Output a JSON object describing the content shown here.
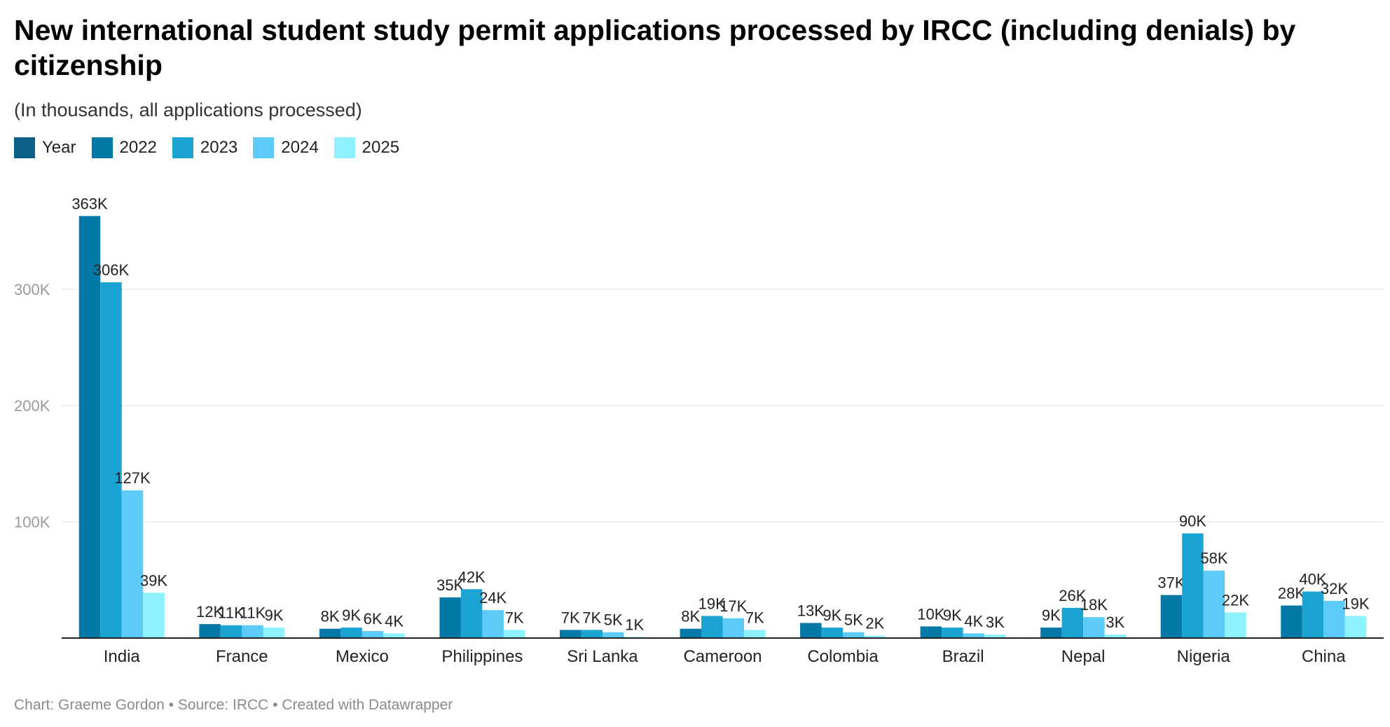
{
  "title": "New international student study permit applications processed by IRCC (including denials) by citizenship",
  "subtitle": "(In thousands, all applications processed)",
  "footer": "Chart: Graeme Gordon • Source: IRCC • Created with Datawrapper",
  "legend": [
    {
      "label": "Year",
      "color": "#0d5f87"
    },
    {
      "label": "2022",
      "color": "#0479a8"
    },
    {
      "label": "2023",
      "color": "#1aa3d3"
    },
    {
      "label": "2024",
      "color": "#5ccbf7"
    },
    {
      "label": "2025",
      "color": "#8ef1ff"
    }
  ],
  "chart_data": {
    "type": "bar",
    "categories": [
      "India",
      "France",
      "Mexico",
      "Philippines",
      "Sri Lanka",
      "Cameroon",
      "Colombia",
      "Brazil",
      "Nepal",
      "Nigeria",
      "China"
    ],
    "series": [
      {
        "name": "2022",
        "color": "#0479a8",
        "values": [
          363,
          12,
          8,
          35,
          7,
          8,
          13,
          10,
          9,
          37,
          28
        ],
        "labels": [
          "363K",
          "12K",
          "8K",
          "35K",
          "7K",
          "8K",
          "13K",
          "10K",
          "9K",
          "37K",
          "28K"
        ]
      },
      {
        "name": "2023",
        "color": "#1aa3d3",
        "values": [
          306,
          11,
          9,
          42,
          7,
          19,
          9,
          9,
          26,
          90,
          40
        ],
        "labels": [
          "306K",
          "11K",
          "9K",
          "42K",
          "7K",
          "19K",
          "9K",
          "9K",
          "26K",
          "90K",
          "40K"
        ]
      },
      {
        "name": "2024",
        "color": "#5ccbf7",
        "values": [
          127,
          11,
          6,
          24,
          5,
          17,
          5,
          4,
          18,
          58,
          32
        ],
        "labels": [
          "127K",
          "11K",
          "6K",
          "24K",
          "5K",
          "17K",
          "5K",
          "4K",
          "18K",
          "58K",
          "32K"
        ]
      },
      {
        "name": "2025",
        "color": "#8ef1ff",
        "values": [
          39,
          9,
          4,
          7,
          1,
          7,
          2,
          3,
          3,
          22,
          19
        ],
        "labels": [
          "39K",
          "9K",
          "4K",
          "7K",
          "1K",
          "7K",
          "2K",
          "3K",
          "3K",
          "22K",
          "19K"
        ]
      }
    ],
    "yticks": [
      {
        "value": 100,
        "label": "100K"
      },
      {
        "value": 200,
        "label": "200K"
      },
      {
        "value": 300,
        "label": "300K"
      }
    ],
    "ylim": [
      0,
      363
    ],
    "grid": true,
    "legend_position": "top-left"
  }
}
